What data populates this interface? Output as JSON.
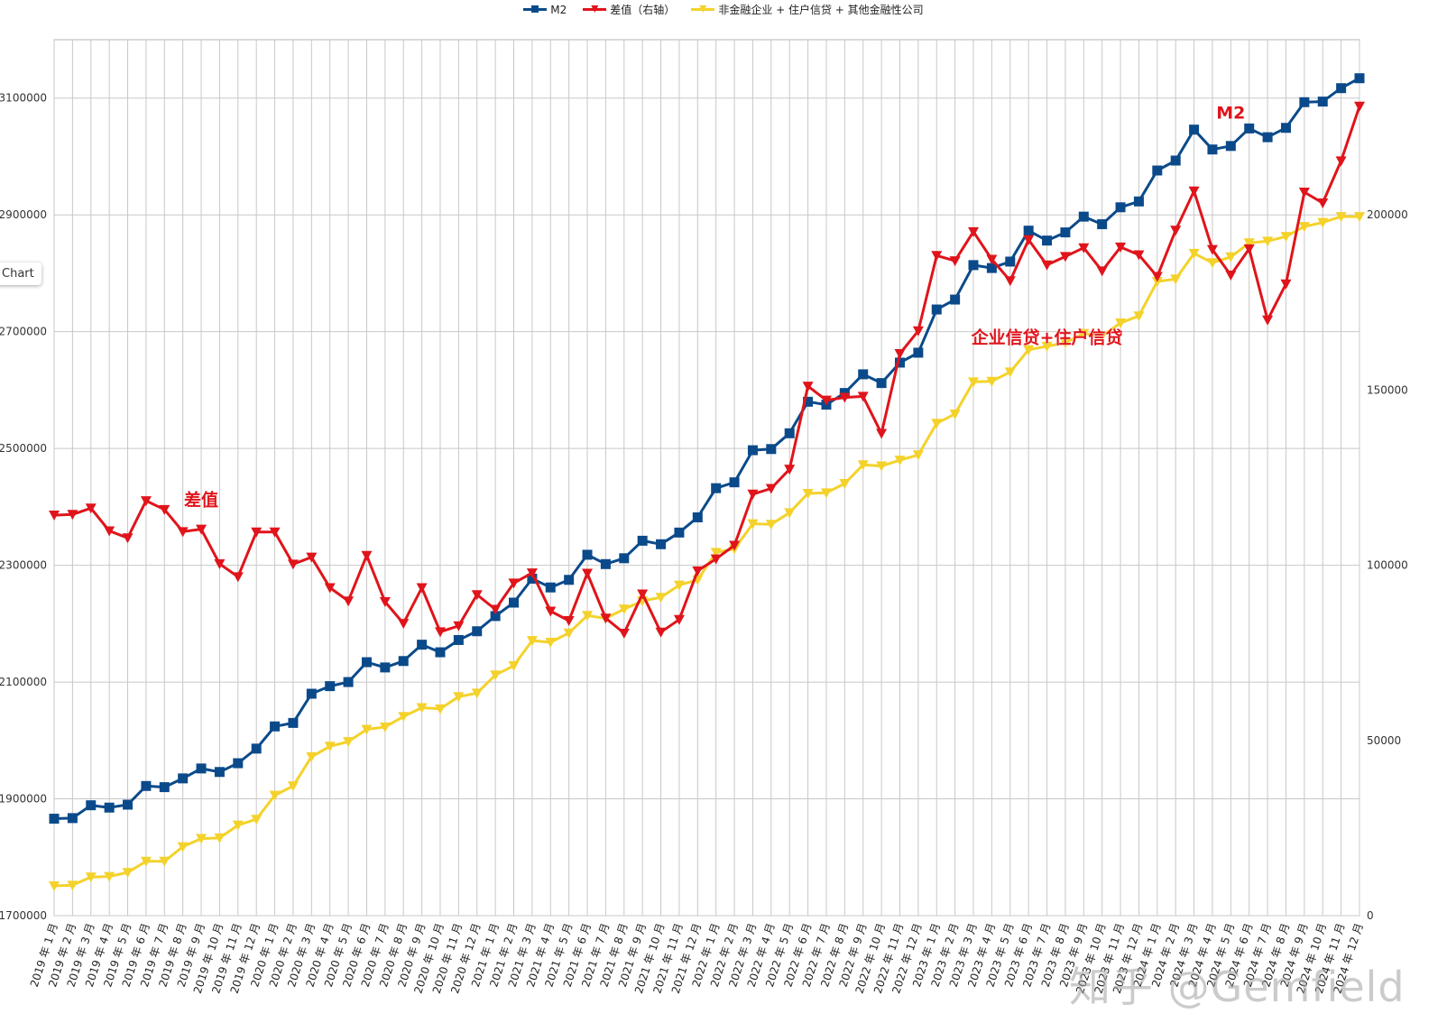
{
  "legend": {
    "items": [
      {
        "label": "M2",
        "color": "#0b4a8a",
        "marker": "square"
      },
      {
        "label": "差值（右轴）",
        "color": "#e0141b",
        "marker": "triangle-down"
      },
      {
        "label": "非金融企业 + 住户信贷 + 其他金融性公司",
        "color": "#f4d22b",
        "marker": "triangle-down"
      }
    ]
  },
  "tooltip": {
    "text": "Chart"
  },
  "watermark": {
    "text": "知乎 @Gemfield"
  },
  "chart_data": {
    "type": "line",
    "title": "",
    "xlabel": "",
    "ylabel": "",
    "grid": true,
    "legend_position": "top",
    "left_axis": {
      "ylim": [
        1700000,
        3200000
      ],
      "ticks": [
        1700000,
        1900000,
        2100000,
        2300000,
        2500000,
        2700000,
        2900000,
        3100000
      ]
    },
    "right_axis": {
      "ylim": [
        0,
        250000
      ],
      "ticks": [
        0,
        50000,
        100000,
        150000,
        200000
      ]
    },
    "categories": [
      "2019 年 1 月",
      "2019 年 2 月",
      "2019 年 3 月",
      "2019 年 4 月",
      "2019 年 5 月",
      "2019 年 6 月",
      "2019 年 7 月",
      "2019 年 8 月",
      "2019 年 9 月",
      "2019 年 10 月",
      "2019 年 11 月",
      "2019 年 12 月",
      "2020 年 1 月",
      "2020 年 2 月",
      "2020 年 3 月",
      "2020 年 4 月",
      "2020 年 5 月",
      "2020 年 6 月",
      "2020 年 7 月",
      "2020 年 8 月",
      "2020 年 9 月",
      "2020 年 10 月",
      "2020 年 11 月",
      "2020 年 12 月",
      "2021 年 1 月",
      "2021 年 2 月",
      "2021 年 3 月",
      "2021 年 4 月",
      "2021 年 5 月",
      "2021 年 6 月",
      "2021 年 7 月",
      "2021 年 8 月",
      "2021 年 9 月",
      "2021 年 10 月",
      "2021 年 11 月",
      "2021 年 12 月",
      "2022 年 1 月",
      "2022 年 2 月",
      "2022 年 3 月",
      "2022 年 4 月",
      "2022 年 5 月",
      "2022 年 6 月",
      "2022 年 7 月",
      "2022 年 8 月",
      "2022 年 9 月",
      "2022 年 10 月",
      "2022 年 11 月",
      "2022 年 12 月",
      "2023 年 1 月",
      "2023 年 2 月",
      "2023 年 3 月",
      "2023 年 4 月",
      "2023 年 5 月",
      "2023 年 6 月",
      "2023 年 7 月",
      "2023 年 8 月",
      "2023 年 9 月",
      "2023 年 10 月",
      "2023 年 11 月",
      "2023 年 12 月",
      "2024 年 1 月",
      "2024 年 2 月",
      "2024 年 3 月",
      "2024 年 4 月",
      "2024 年 5 月",
      "2024 年 6 月",
      "2024 年 7 月",
      "2024 年 8 月",
      "2024 年 9 月",
      "2024 年 10 月",
      "2024 年 11 月",
      "2024 年 12 月"
    ],
    "series": [
      {
        "name": "M2",
        "axis": "left",
        "color": "#0b4a8a",
        "marker": "square",
        "values": [
          1866000,
          1867000,
          1889000,
          1885000,
          1890000,
          1922000,
          1920000,
          1935000,
          1952000,
          1946000,
          1961000,
          1986000,
          2024000,
          2030000,
          2080000,
          2093000,
          2100000,
          2134000,
          2125000,
          2136000,
          2164000,
          2151000,
          2172000,
          2187000,
          2213000,
          2236000,
          2277000,
          2262000,
          2275000,
          2318000,
          2302000,
          2312000,
          2342000,
          2336000,
          2356000,
          2382000,
          2432000,
          2442000,
          2497000,
          2499000,
          2526000,
          2580000,
          2575000,
          2595000,
          2627000,
          2612000,
          2647000,
          2664000,
          2738000,
          2755000,
          2814000,
          2809000,
          2820000,
          2873000,
          2856000,
          2870000,
          2897000,
          2884000,
          2913000,
          2923000,
          2976000,
          2993000,
          3046000,
          3012000,
          3018000,
          3048000,
          3033000,
          3049000,
          3093000,
          3094000,
          3117000,
          3134000
        ]
      },
      {
        "name": "差值（右轴）",
        "axis": "right",
        "color": "#e0141b",
        "marker": "triangle-down",
        "values": [
          114300,
          114500,
          116300,
          109800,
          107800,
          118400,
          115900,
          109600,
          110300,
          100400,
          96700,
          109500,
          109500,
          100300,
          102300,
          93600,
          89800,
          102800,
          89600,
          83400,
          93600,
          81000,
          82700,
          91600,
          87400,
          94900,
          97800,
          86900,
          84200,
          97700,
          84900,
          80600,
          91800,
          80900,
          84500,
          98400,
          101800,
          105700,
          120300,
          121900,
          127400,
          151100,
          147100,
          147900,
          148200,
          137600,
          160400,
          166900,
          188400,
          186900,
          195200,
          187300,
          181200,
          192900,
          185700,
          188100,
          190600,
          184000,
          190800,
          188600,
          182400,
          195600,
          206800,
          190100,
          182800,
          190300,
          170000,
          180300,
          206500,
          203400,
          215400,
          231000
        ]
      },
      {
        "name": "非金融企业 + 住户信贷 + 其他金融性公司",
        "axis": "left",
        "color": "#f4d22b",
        "marker": "triangle-down",
        "values": [
          1751000,
          1752000,
          1766000,
          1767000,
          1774000,
          1793000,
          1793000,
          1818000,
          1832000,
          1833000,
          1855000,
          1865000,
          1906000,
          1922000,
          1972000,
          1990000,
          1998000,
          2019000,
          2023000,
          2041000,
          2056000,
          2054000,
          2075000,
          2081000,
          2112000,
          2128000,
          2171000,
          2168000,
          2184000,
          2214000,
          2209000,
          2225000,
          2239000,
          2245000,
          2266000,
          2275000,
          2322000,
          2328000,
          2371000,
          2370000,
          2390000,
          2423000,
          2424000,
          2440000,
          2472000,
          2470000,
          2480000,
          2489000,
          2543000,
          2559000,
          2614000,
          2615000,
          2631000,
          2669000,
          2675000,
          2681000,
          2697000,
          2693000,
          2715000,
          2727000,
          2786000,
          2790000,
          2834000,
          2818000,
          2828000,
          2852000,
          2855000,
          2863000,
          2880000,
          2887000,
          2897000,
          2897000
        ]
      }
    ],
    "annotations": [
      {
        "text": "差值",
        "color": "#e0141b",
        "x": "2019 年 9 月",
        "y": 117000,
        "axis": "right"
      },
      {
        "text": "企业信贷+住户信贷",
        "color": "#e0141b",
        "x": "2023 年 7 月",
        "y": 2680000,
        "axis": "left"
      },
      {
        "text": "M2",
        "color": "#e0141b",
        "x": "2024 年 5 月",
        "y": 3065000,
        "axis": "left"
      }
    ]
  }
}
